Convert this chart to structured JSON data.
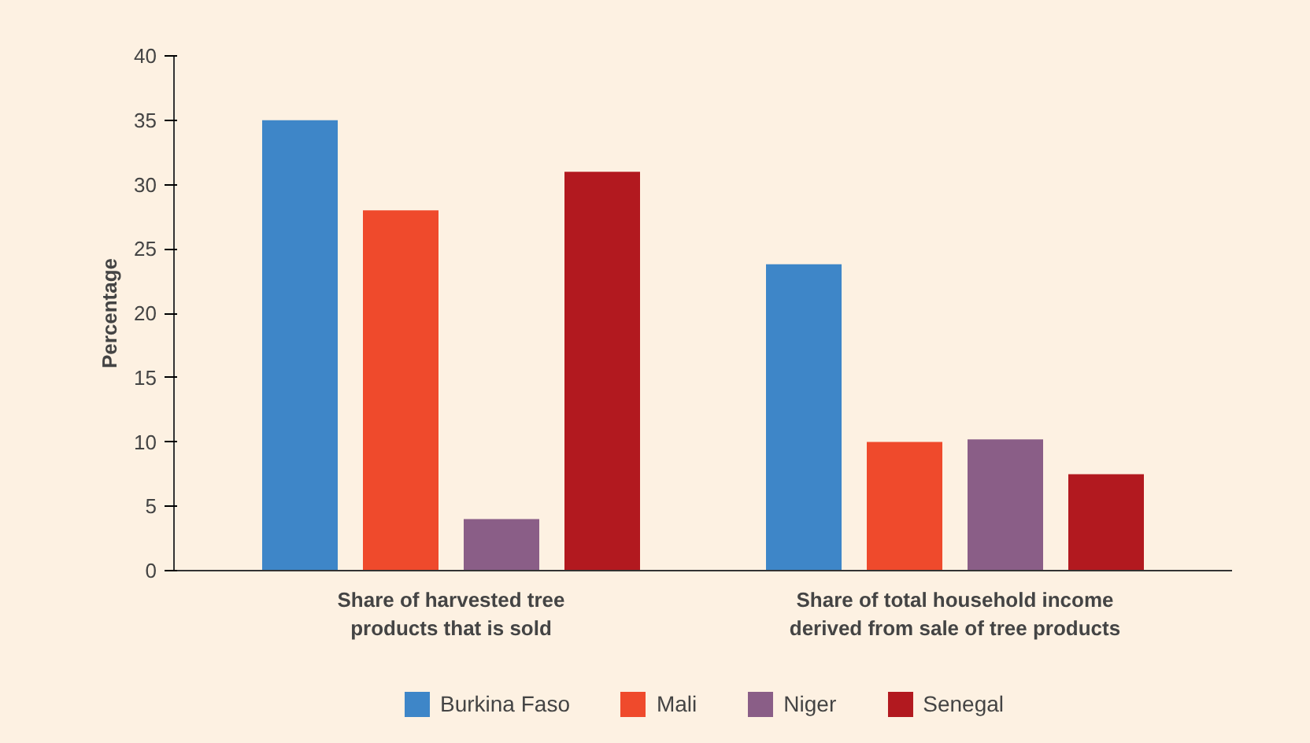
{
  "chart_data": {
    "type": "bar",
    "ylabel": "Percentage",
    "categories": [
      "Share of harvested tree products that is sold",
      "Share of total household income derived from sale of tree products"
    ],
    "series": [
      {
        "name": "Burkina Faso",
        "color": "#3e86c8",
        "values": [
          35,
          23.8
        ]
      },
      {
        "name": "Mali",
        "color": "#ef4a2c",
        "values": [
          28,
          10
        ]
      },
      {
        "name": "Niger",
        "color": "#8a5e87",
        "values": [
          4,
          10.2
        ]
      },
      {
        "name": "Senegal",
        "color": "#b2191f",
        "values": [
          31,
          7.5
        ]
      }
    ],
    "ylim": [
      0,
      40
    ],
    "yticks": [
      0,
      5,
      10,
      15,
      20,
      25,
      30,
      35,
      40
    ],
    "grid": false,
    "legend": "bottom"
  }
}
